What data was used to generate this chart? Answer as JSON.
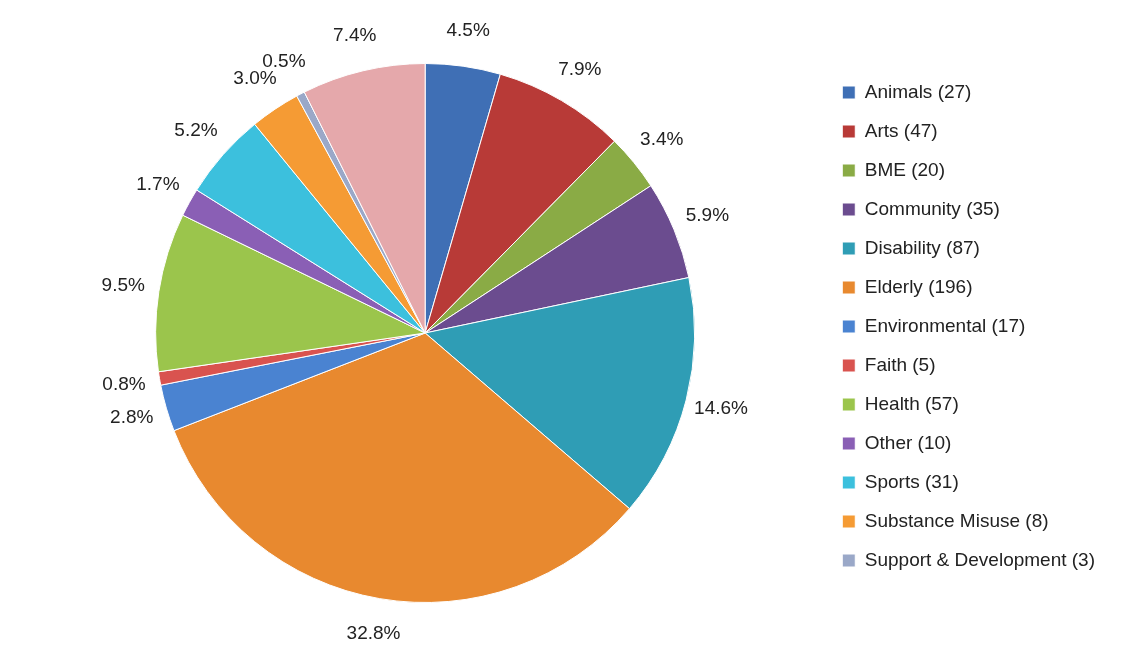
{
  "chart_data": {
    "type": "pie",
    "categories": [
      "Animals (27)",
      "Arts (47)",
      "BME (20)",
      "Community (35)",
      "Disability (87)",
      "Elderly (196)",
      "Environmental (17)",
      "Faith (5)",
      "Health (57)",
      "Other (10)",
      "Sports (31)",
      "Substance Misuse (8)",
      "Support & Development (3)",
      null
    ],
    "values": [
      4.5,
      7.9,
      3.4,
      5.9,
      14.6,
      32.8,
      2.8,
      0.8,
      9.5,
      1.7,
      5.2,
      3.0,
      0.5,
      7.4
    ],
    "value_labels": [
      "4.5%",
      "7.9%",
      "3.4%",
      "5.9%",
      "14.6%",
      "32.8%",
      "2.8%",
      "0.8%",
      "9.5%",
      "1.7%",
      "5.2%",
      "3.0%",
      "0.5%",
      "7.4%"
    ],
    "colors": [
      "#3f6fb5",
      "#b83a37",
      "#8aab45",
      "#6b4c8f",
      "#2f9db5",
      "#e8892f",
      "#4a83d1",
      "#d9534f",
      "#9bc54c",
      "#8a5fb5",
      "#3cc0dd",
      "#f59b34",
      "#9aa8c8",
      "#e5a8ab"
    ],
    "legend": "right"
  }
}
